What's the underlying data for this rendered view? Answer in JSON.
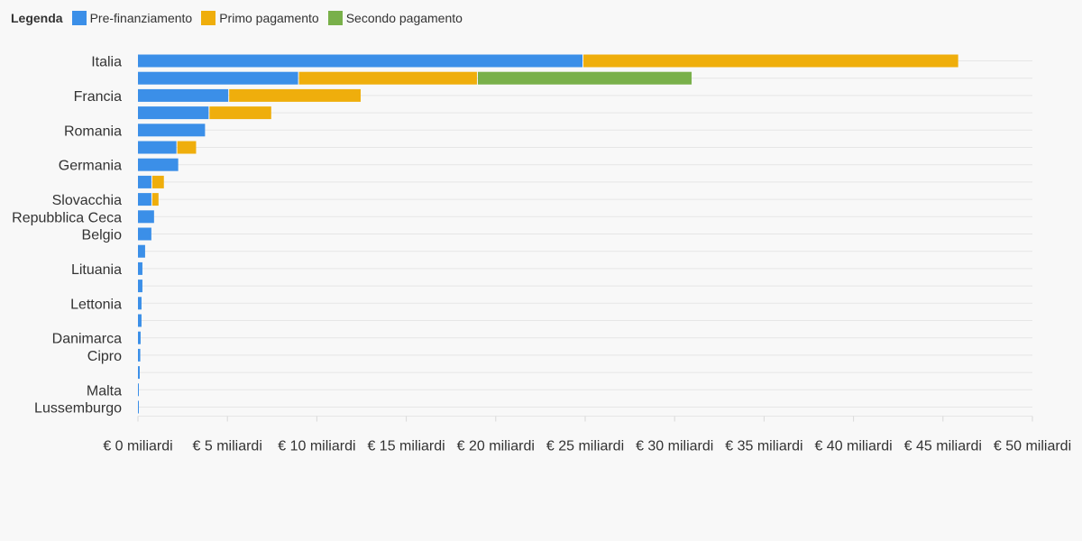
{
  "legend": {
    "title": "Legenda",
    "items": [
      {
        "label": "Pre-finanziamento",
        "color": "#3b8fe8"
      },
      {
        "label": "Primo pagamento",
        "color": "#efae0c"
      },
      {
        "label": "Secondo pagamento",
        "color": "#79b04a"
      }
    ]
  },
  "chart_data": {
    "type": "bar",
    "orientation": "horizontal",
    "stacked": true,
    "categories": [
      "Italia",
      "",
      "Francia",
      "",
      "Romania",
      "",
      "Germania",
      "",
      "Slovacchia",
      "Repubblica Ceca",
      "Belgio",
      "",
      "Lituania",
      "",
      "Lettonia",
      "",
      "Danimarca",
      "Cipro",
      "",
      "Malta",
      "Lussemburgo"
    ],
    "series": [
      {
        "name": "Pre-finanziamento",
        "color": "#3b8fe8",
        "values": [
          24.9,
          9.0,
          5.1,
          4.0,
          3.8,
          2.2,
          2.3,
          0.8,
          0.8,
          0.95,
          0.8,
          0.45,
          0.3,
          0.3,
          0.25,
          0.25,
          0.2,
          0.18,
          0.15,
          0.05,
          0.01
        ]
      },
      {
        "name": "Primo pagamento",
        "color": "#efae0c",
        "values": [
          21.0,
          10.0,
          7.4,
          3.5,
          0,
          1.1,
          0,
          0.7,
          0.4,
          0,
          0,
          0,
          0,
          0,
          0,
          0,
          0,
          0,
          0,
          0,
          0
        ]
      },
      {
        "name": "Secondo pagamento",
        "color": "#79b04a",
        "values": [
          0,
          12.0,
          0,
          0,
          0,
          0,
          0,
          0,
          0,
          0,
          0,
          0,
          0,
          0,
          0,
          0,
          0,
          0,
          0,
          0,
          0
        ]
      }
    ],
    "xlim": [
      0,
      50
    ],
    "xticks": [
      0,
      5,
      10,
      15,
      20,
      25,
      30,
      35,
      40,
      45,
      50
    ],
    "xtick_labels": [
      "€ 0 miliardi",
      "€ 5 miliardi",
      "€ 10 miliardi",
      "€ 15 miliardi",
      "€ 20 miliardi",
      "€ 25 miliardi",
      "€ 30 miliardi",
      "€ 35 miliardi",
      "€ 40 miliardi",
      "€ 45 miliardi",
      "€ 50 miliardi"
    ],
    "grid": true,
    "legend_position": "top-left"
  }
}
